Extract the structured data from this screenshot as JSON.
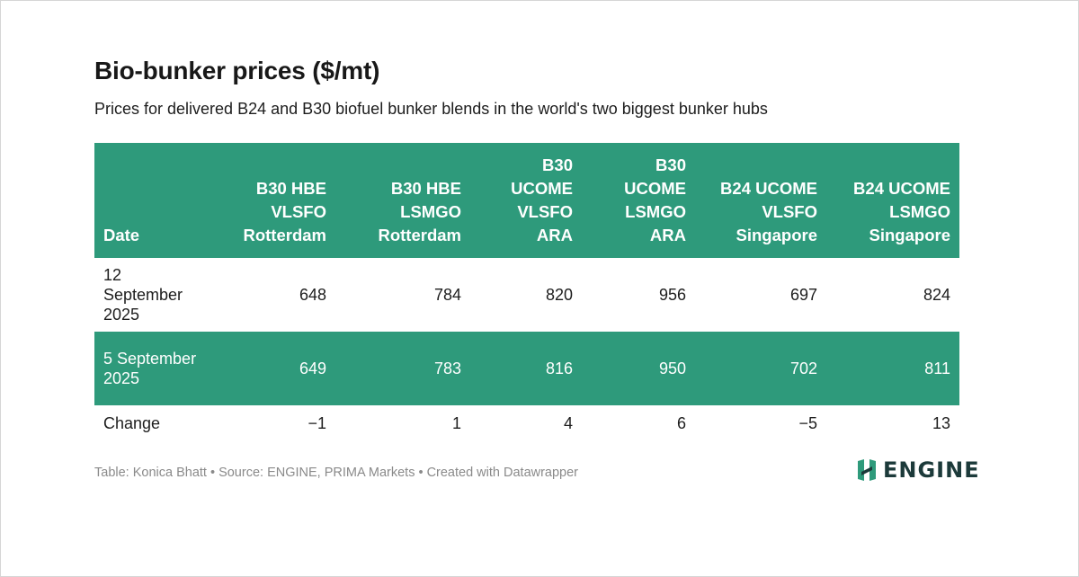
{
  "title": "Bio-bunker prices ($/mt)",
  "subtitle": "Prices for delivered B24 and B30 biofuel bunker blends in the world's two biggest bunker hubs",
  "colors": {
    "header_bg": "#2e9a7b",
    "shaded_row_bg": "#2e9a7b",
    "logo_text": "#1c3a3a",
    "logo_mark": "#2e9a7b"
  },
  "chart_data": {
    "type": "table",
    "columns": [
      "Date",
      "B30 HBE VLSFO Rotterdam",
      "B30 HBE LSMGO Rotterdam",
      "B30 UCOME VLSFO ARA",
      "B30 UCOME LSMGO ARA",
      "B24 UCOME VLSFO Singapore",
      "B24 UCOME LSMGO Singapore"
    ],
    "rows": [
      {
        "date": "12 September 2025",
        "values": [
          "648",
          "784",
          "820",
          "956",
          "697",
          "824"
        ]
      },
      {
        "date": "5 September 2025",
        "values": [
          "649",
          "783",
          "816",
          "950",
          "702",
          "811"
        ]
      },
      {
        "date": "Change",
        "values": [
          "−1",
          "1",
          "4",
          "6",
          "−5",
          "13"
        ]
      }
    ]
  },
  "footer": {
    "credit": "Table: Konica Bhatt • Source: ENGINE, PRIMA Markets • Created with Datawrapper"
  },
  "logo": {
    "text": "ENGINE",
    "icon": "engine-logo-mark"
  }
}
